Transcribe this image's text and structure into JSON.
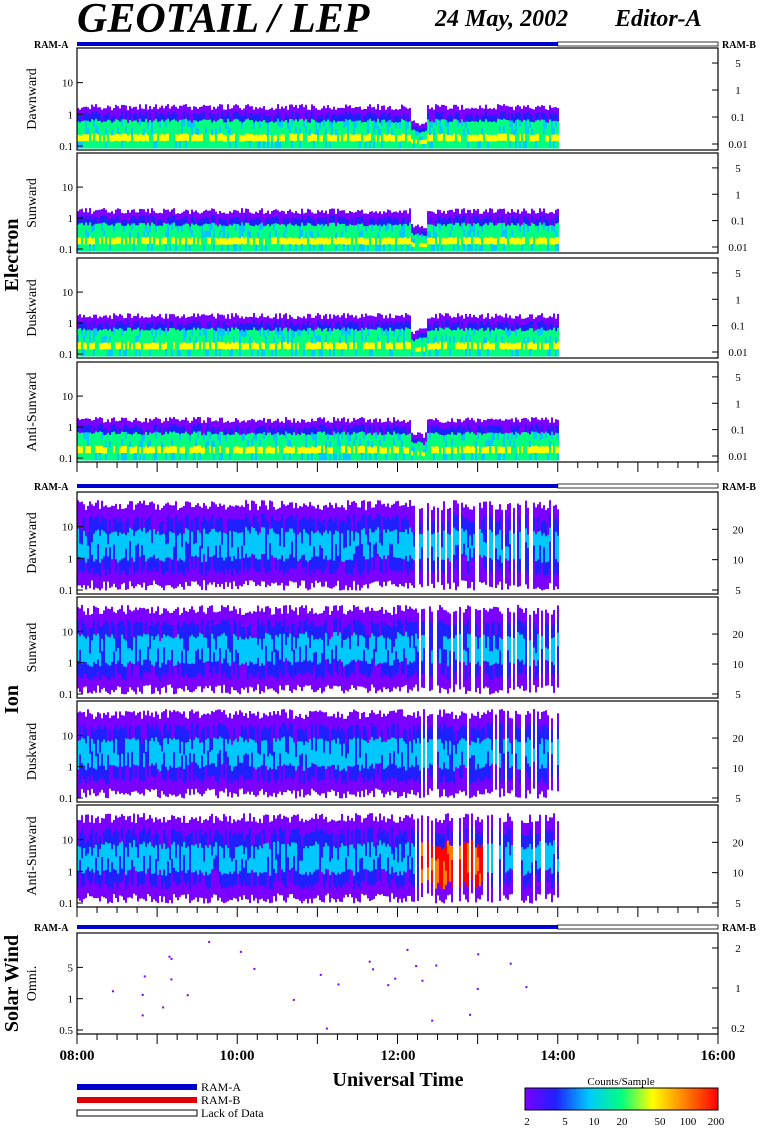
{
  "header": {
    "title": "GEOTAIL / LEP",
    "date": "24 May, 2002",
    "editor": "Editor-A"
  },
  "ram_labels": {
    "left": "RAM-A",
    "right": "RAM-B"
  },
  "sections": [
    {
      "name": "Electron",
      "panels": [
        "Dawnward",
        "Sunward",
        "Duskward",
        "Anti-Sunward"
      ]
    },
    {
      "name": "Ion",
      "panels": [
        "Dawnward",
        "Sunward",
        "Duskward",
        "Anti-Sunward"
      ]
    },
    {
      "name": "Solar Wind",
      "panels": [
        "Omni."
      ]
    }
  ],
  "legend": {
    "items": [
      {
        "label": "RAM-A",
        "color": "#0000cc"
      },
      {
        "label": "RAM-B",
        "color": "#dd0000"
      },
      {
        "label": "Lack of Data",
        "color": "#ffffff"
      }
    ]
  },
  "colorbar": {
    "title": "Counts/Sample",
    "ticks": [
      "2",
      "5",
      "10",
      "20",
      "50",
      "100",
      "200"
    ],
    "colors": [
      "#7a00ff",
      "#2020ff",
      "#00c8ff",
      "#00ff80",
      "#ffff00",
      "#ff8000",
      "#ff0000"
    ]
  },
  "chart_data": [
    {
      "type": "heatmap",
      "section": "Electron",
      "panel": "Dawnward",
      "ylabel": "Dawnward",
      "x_ticks": [
        "08:00",
        "10:00",
        "12:00",
        "14:00",
        "16:00"
      ],
      "x_range_hours": [
        8,
        16
      ],
      "data_end_hour": 14.0,
      "y_left_ticks": [
        "0.1",
        "1",
        "10"
      ],
      "y_right_ticks": [
        "0.01",
        "0.1",
        "1",
        "5"
      ],
      "y_scale": "log"
    },
    {
      "type": "heatmap",
      "section": "Electron",
      "panel": "Sunward",
      "ylabel": "Sunward",
      "x_range_hours": [
        8,
        16
      ],
      "data_end_hour": 14.0,
      "y_left_ticks": [
        "0.1",
        "1",
        "10"
      ],
      "y_right_ticks": [
        "0.01",
        "0.1",
        "1",
        "5"
      ],
      "y_scale": "log"
    },
    {
      "type": "heatmap",
      "section": "Electron",
      "panel": "Duskward",
      "ylabel": "Duskward",
      "x_range_hours": [
        8,
        16
      ],
      "data_end_hour": 14.0,
      "y_left_ticks": [
        "0.1",
        "1",
        "10"
      ],
      "y_right_ticks": [
        "0.01",
        "0.1",
        "1",
        "5"
      ],
      "y_scale": "log"
    },
    {
      "type": "heatmap",
      "section": "Electron",
      "panel": "Anti-Sunward",
      "ylabel": "Anti-Sunward",
      "x_range_hours": [
        8,
        16
      ],
      "data_end_hour": 14.0,
      "y_left_ticks": [
        "0.1",
        "1",
        "10"
      ],
      "y_right_ticks": [
        "0.01",
        "0.1",
        "1",
        "5"
      ],
      "y_scale": "log"
    },
    {
      "type": "heatmap",
      "section": "Ion",
      "panel": "Dawnward",
      "ylabel": "Dawnward",
      "x_range_hours": [
        8,
        16
      ],
      "data_end_hour": 14.0,
      "y_left_ticks": [
        "0.1",
        "1",
        "10"
      ],
      "y_right_ticks": [
        "5",
        "10",
        "20"
      ],
      "y_scale": "log"
    },
    {
      "type": "heatmap",
      "section": "Ion",
      "panel": "Sunward",
      "ylabel": "Sunward",
      "x_range_hours": [
        8,
        16
      ],
      "data_end_hour": 14.0,
      "y_left_ticks": [
        "0.1",
        "1",
        "10"
      ],
      "y_right_ticks": [
        "5",
        "10",
        "20"
      ],
      "y_scale": "log"
    },
    {
      "type": "heatmap",
      "section": "Ion",
      "panel": "Duskward",
      "ylabel": "Duskward",
      "x_range_hours": [
        8,
        16
      ],
      "data_end_hour": 14.0,
      "y_left_ticks": [
        "0.1",
        "1",
        "10"
      ],
      "y_right_ticks": [
        "5",
        "10",
        "20"
      ],
      "y_scale": "log"
    },
    {
      "type": "heatmap",
      "section": "Ion",
      "panel": "Anti-Sunward",
      "ylabel": "Anti-Sunward",
      "x_range_hours": [
        8,
        16
      ],
      "data_end_hour": 14.0,
      "y_left_ticks": [
        "0.1",
        "1",
        "10"
      ],
      "y_right_ticks": [
        "5",
        "10",
        "20"
      ],
      "y_scale": "log"
    },
    {
      "type": "heatmap",
      "section": "Solar Wind",
      "panel": "Omni.",
      "ylabel": "Omni.",
      "x_ticks": [
        "08:00",
        "10:00",
        "12:00",
        "14:00",
        "16:00"
      ],
      "x_range_hours": [
        8,
        16
      ],
      "xlabel": "Universal Time",
      "y_left_ticks": [
        "0.5",
        "1",
        "5"
      ],
      "y_right_ticks": [
        "0.2",
        "1",
        "2"
      ],
      "y_scale": "log"
    }
  ]
}
